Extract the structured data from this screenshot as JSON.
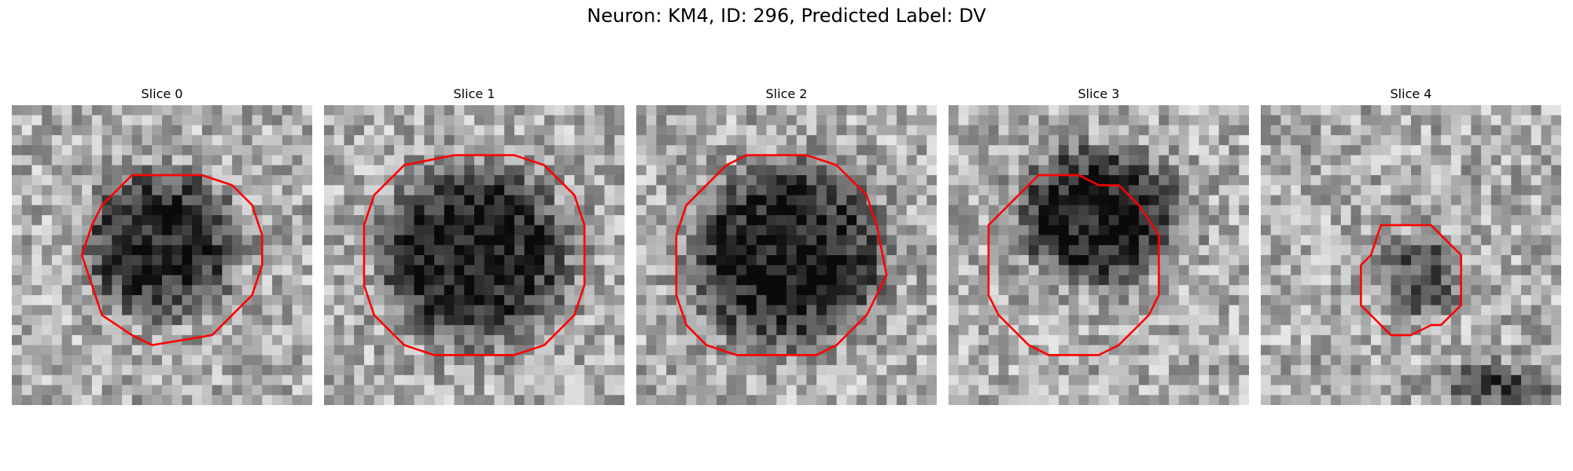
{
  "figure": {
    "title": "Neuron: KM4, ID: 296, Predicted Label: DV",
    "contour_color": "#ff0000"
  },
  "panels": [
    {
      "title": "Slice 0",
      "image": "grayscale microscopy slice with dark blob and red contour"
    },
    {
      "title": "Slice 1",
      "image": "grayscale microscopy slice with dark blob and red contour"
    },
    {
      "title": "Slice 2",
      "image": "grayscale microscopy slice with dark blob and red contour"
    },
    {
      "title": "Slice 3",
      "image": "grayscale microscopy slice with dark blob and red contour"
    },
    {
      "title": "Slice 4",
      "image": "grayscale microscopy slice with faint blob and red contour"
    }
  ]
}
